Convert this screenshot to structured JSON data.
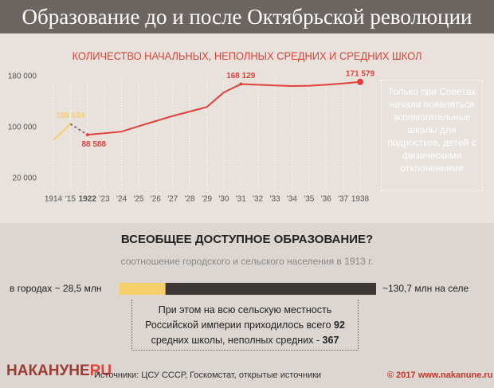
{
  "header": {
    "title": "Образование до и после Октябрьской революции"
  },
  "chart_data": {
    "type": "line",
    "title": "КОЛИЧЕСТВО НАЧАЛЬНЫХ, НЕПОЛНЫХ СРЕДНИХ И СРЕДНИХ ШКОЛ",
    "categories": [
      "1914",
      "'15",
      "1922",
      "'23",
      "'24",
      "'25",
      "'26",
      "'27",
      "'28",
      "'29",
      "'30",
      "'31",
      "'32",
      "'33",
      "'34",
      "'35",
      "'36",
      "'37",
      "1938"
    ],
    "series": [
      {
        "color": "#f5d06a",
        "values": [
          80000,
          105524,
          null,
          null,
          null,
          null,
          null,
          null,
          null,
          null,
          null,
          null,
          null,
          null,
          null,
          null,
          null,
          null,
          null
        ],
        "value_labels": [
          null,
          "105 524",
          null,
          null,
          null,
          null,
          null,
          null,
          null,
          null,
          null,
          null,
          null,
          null,
          null,
          null,
          null,
          null,
          null
        ]
      },
      {
        "color": "#7a716b",
        "dashed": true,
        "values": [
          null,
          105524,
          88588,
          null,
          null,
          null,
          null,
          null,
          null,
          null,
          null,
          null,
          null,
          null,
          null,
          null,
          null,
          null,
          null
        ]
      },
      {
        "color": "#e0403a",
        "values": [
          null,
          null,
          88588,
          91000,
          93500,
          102000,
          110000,
          118000,
          125000,
          132000,
          155000,
          168129,
          167000,
          166000,
          165000,
          165500,
          167000,
          169000,
          171579
        ],
        "value_labels": [
          null,
          null,
          "88 588",
          null,
          null,
          null,
          null,
          null,
          null,
          null,
          null,
          "168 129",
          null,
          null,
          null,
          null,
          null,
          null,
          "171 579"
        ]
      }
    ],
    "ylim": [
      0,
      185000
    ],
    "yticks": [
      {
        "value": 20000,
        "label": "20 000"
      },
      {
        "value": 100000,
        "label": "100 000"
      },
      {
        "value": 180000,
        "label": "180 000"
      }
    ],
    "grid": false,
    "note": "Только при Советах начали появляться вспомогательные школы для подростков, детей с физическими отклонениями"
  },
  "population": {
    "title": "ВСЕОБЩЕЕ ДОСТУПНОЕ ОБРАЗОВАНИЕ?",
    "subtitle": "соотношение городского и сельского населения в 1913 г.",
    "labels": [
      "в городах ~ 28,5 млн",
      "~130,7 млн на селе"
    ],
    "values": [
      28.5,
      130.7
    ],
    "colors": [
      "#f5d06a",
      "#3d3836"
    ]
  },
  "fact": {
    "parts": [
      "При этом на всю сельскую местность Российской империи приходилось всего ",
      "92",
      " средних школы, неполных средних - ",
      "367"
    ]
  },
  "footer": {
    "logo": "НАКАНУНЕ",
    "logo_suffix": "RU",
    "sources": "Источники: ЦСУ СССР, Госкомстат, открытые источники",
    "copyright": "© 2017 www.nakanune.ru"
  }
}
